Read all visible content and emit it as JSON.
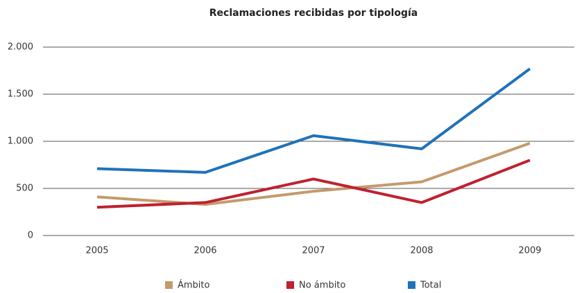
{
  "chart_data": {
    "type": "line",
    "title": "Reclamaciones recibidas por tipología",
    "categories": [
      "2005",
      "2006",
      "2007",
      "2008",
      "2009"
    ],
    "series": [
      {
        "name": "Ámbito",
        "color": "#c49a6c",
        "values": [
          410,
          330,
          470,
          570,
          980
        ]
      },
      {
        "name": "No ámbito",
        "color": "#c0202f",
        "values": [
          300,
          350,
          600,
          350,
          800
        ]
      },
      {
        "name": "Total",
        "color": "#1f72b8",
        "values": [
          710,
          670,
          1060,
          920,
          1770
        ]
      }
    ],
    "ylim": [
      0,
      2000
    ],
    "yticks": [
      0,
      500,
      {
        "value": 1000,
        "label": "1.000"
      },
      {
        "value": 1500,
        "label": "1.500"
      },
      {
        "value": 2000,
        "label": "2.000"
      }
    ],
    "grid": true,
    "legend": "bottom"
  }
}
